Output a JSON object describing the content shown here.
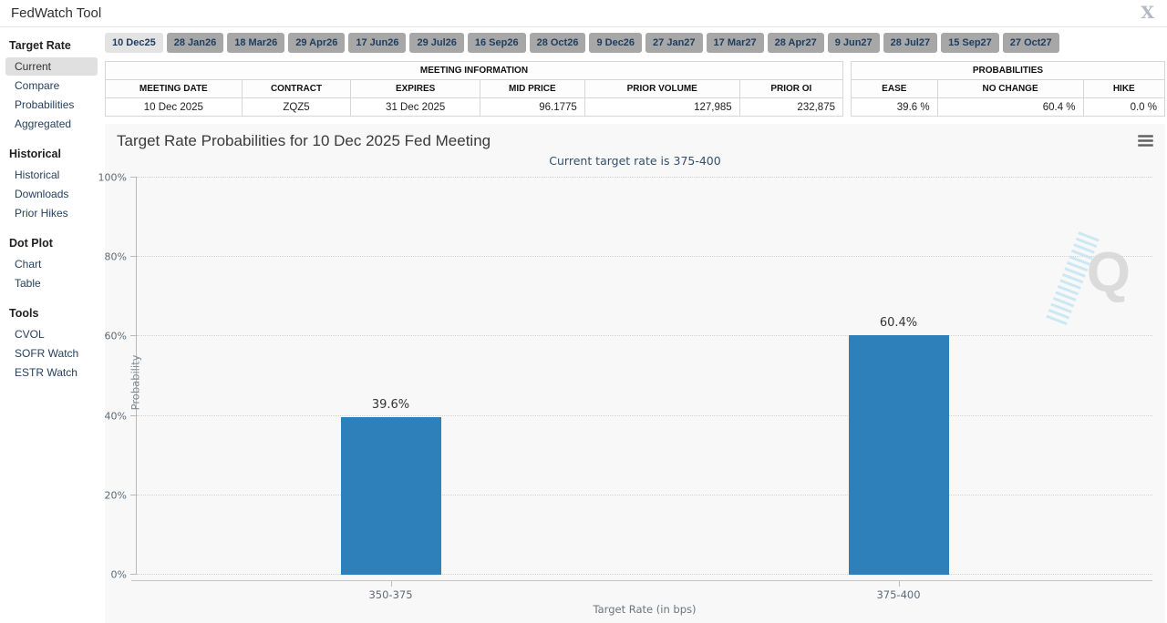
{
  "header": {
    "title": "FedWatch Tool"
  },
  "icons": {
    "close_glyph": "X",
    "chart_menu": "hamburger-icon"
  },
  "sidebar": {
    "sections": [
      {
        "title": "Target Rate",
        "items": [
          {
            "label": "Current",
            "selected": true
          },
          {
            "label": "Compare"
          },
          {
            "label": "Probabilities"
          },
          {
            "label": "Aggregated"
          }
        ]
      },
      {
        "title": "Historical",
        "items": [
          {
            "label": "Historical"
          },
          {
            "label": "Downloads"
          },
          {
            "label": "Prior Hikes"
          }
        ]
      },
      {
        "title": "Dot Plot",
        "items": [
          {
            "label": "Chart"
          },
          {
            "label": "Table"
          }
        ]
      },
      {
        "title": "Tools",
        "items": [
          {
            "label": "CVOL"
          },
          {
            "label": "SOFR Watch"
          },
          {
            "label": "ESTR Watch"
          }
        ]
      }
    ]
  },
  "meeting_tabs": [
    "10 Dec25",
    "28 Jan26",
    "18 Mar26",
    "29 Apr26",
    "17 Jun26",
    "29 Jul26",
    "16 Sep26",
    "28 Oct26",
    "9 Dec26",
    "27 Jan27",
    "17 Mar27",
    "28 Apr27",
    "9 Jun27",
    "28 Jul27",
    "15 Sep27",
    "27 Oct27"
  ],
  "meeting_info": {
    "title": "MEETING INFORMATION",
    "headers": [
      "MEETING DATE",
      "CONTRACT",
      "EXPIRES",
      "MID PRICE",
      "PRIOR VOLUME",
      "PRIOR OI"
    ],
    "values": [
      "10 Dec 2025",
      "ZQZ5",
      "31 Dec 2025",
      "96.1775",
      "127,985",
      "232,875"
    ]
  },
  "probabilities": {
    "title": "PROBABILITIES",
    "headers": [
      "EASE",
      "NO CHANGE",
      "HIKE"
    ],
    "values": [
      "39.6 %",
      "60.4 %",
      "0.0 %"
    ]
  },
  "chart_data": {
    "type": "bar",
    "title": "Target Rate Probabilities for 10 Dec 2025 Fed Meeting",
    "subtitle": "Current target rate is 375-400",
    "categories": [
      "350-375",
      "375-400"
    ],
    "values": [
      39.6,
      60.4
    ],
    "bar_labels": [
      "39.6%",
      "60.4%"
    ],
    "xlabel": "Target Rate (in bps)",
    "ylabel": "Probability",
    "ylim": [
      0,
      100
    ],
    "yticks": [
      "0%",
      "20%",
      "40%",
      "60%",
      "80%",
      "100%"
    ],
    "grid": "dotted-horizontal",
    "legend": "none",
    "bar_color": "#2e80ba",
    "watermark": "Q"
  },
  "colors": {
    "bar": "#2e80ba",
    "tab_bg": "#a7a7a7",
    "tab_active_bg": "#e3e3e3",
    "link_text": "#26415e",
    "subtitle_text": "#33506b",
    "panel_bg": "#f8f8f8"
  }
}
